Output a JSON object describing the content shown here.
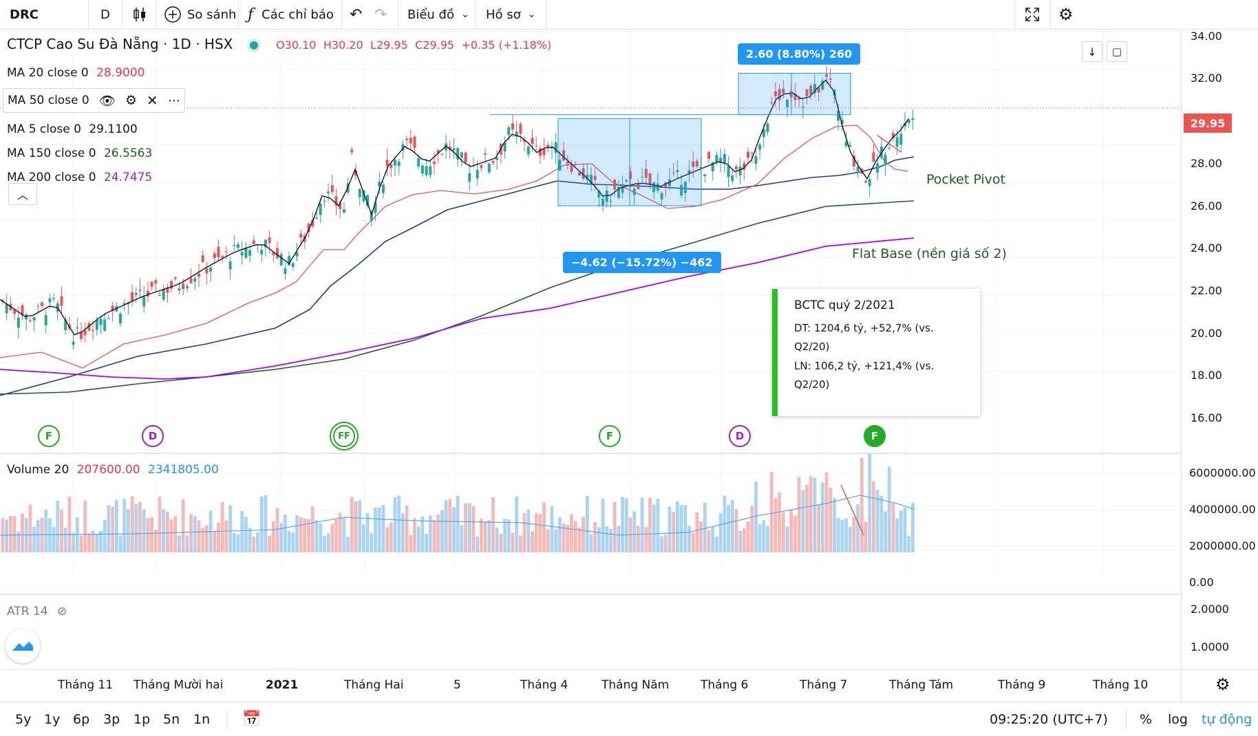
{
  "toolbar": {
    "symbol": "DRC",
    "interval": "D",
    "compare_label": "So sánh",
    "indicators_label": "Các chỉ báo",
    "chart_label": "Biểu đồ",
    "profile_label": "Hồ sơ"
  },
  "header": {
    "title": "CTCP Cao Su Đà Nẵng · 1D · HSX",
    "open": "O30.10",
    "high": "H30.20",
    "low": "L29.95",
    "close": "C29.95",
    "change": "+0.35 (+1.18%)"
  },
  "legend": {
    "ma20": {
      "label": "MA 20 close 0",
      "value": "28.9000",
      "color": "#f23645"
    },
    "ma50": {
      "label": "MA 50 close 0",
      "color": "#1e3a8a"
    },
    "ma5": {
      "label": "MA 5 close 0",
      "value": "29.1100",
      "color": "#131722"
    },
    "ma150": {
      "label": "MA 150 close 0",
      "value": "26.5563",
      "color": "#1b5e20"
    },
    "ma200": {
      "label": "MA 200 close 0",
      "value": "24.7475",
      "color": "#9c27b0"
    }
  },
  "price_axis": {
    "ticks": [
      "34.00",
      "32.00",
      "28.00",
      "26.00",
      "24.00",
      "22.00",
      "20.00",
      "18.00",
      "16.00"
    ],
    "last_price": "29.95"
  },
  "measures": {
    "up": "2.60 (8.80%) 260",
    "down": "−4.62 (−15.72%) −462"
  },
  "annotations": {
    "pocket_pivot": "Pocket Pivot",
    "flat_base": "Flat Base (nền giá số 2)"
  },
  "note": {
    "title": "BCTC quý 2/2021",
    "line1": "DT: 1204,6 tỷ, +52,7% (vs. Q2/20)",
    "line2": "LN: 106,2 tỷ, +121,4% (vs. Q2/20)"
  },
  "events": [
    "F",
    "D",
    "FF",
    "F",
    "D",
    "F"
  ],
  "volume": {
    "label": "Volume 20",
    "value1": "207600.00",
    "value2": "2341805.00",
    "ticks": [
      "6000000.00",
      "4000000.00",
      "2000000.00",
      "0.00"
    ]
  },
  "atr": {
    "label": "ATR 14",
    "ticks": [
      "2.0000",
      "1.0000"
    ]
  },
  "time_axis": [
    "Tháng 11",
    "Tháng Mười hai",
    "2021",
    "Tháng Hai",
    "5",
    "Tháng 4",
    "Tháng Năm",
    "Tháng 6",
    "Tháng 7",
    "Tháng Tám",
    "Tháng 9",
    "Tháng 10"
  ],
  "bottom_bar": {
    "ranges": [
      "5y",
      "1y",
      "6p",
      "3p",
      "1p",
      "5n",
      "1n"
    ],
    "time": "09:25:20 (UTC+7)",
    "percent": "%",
    "log": "log",
    "auto": "tự động"
  },
  "colors": {
    "up": "#26a69a",
    "down": "#ef5350",
    "accent": "#2196f3"
  }
}
